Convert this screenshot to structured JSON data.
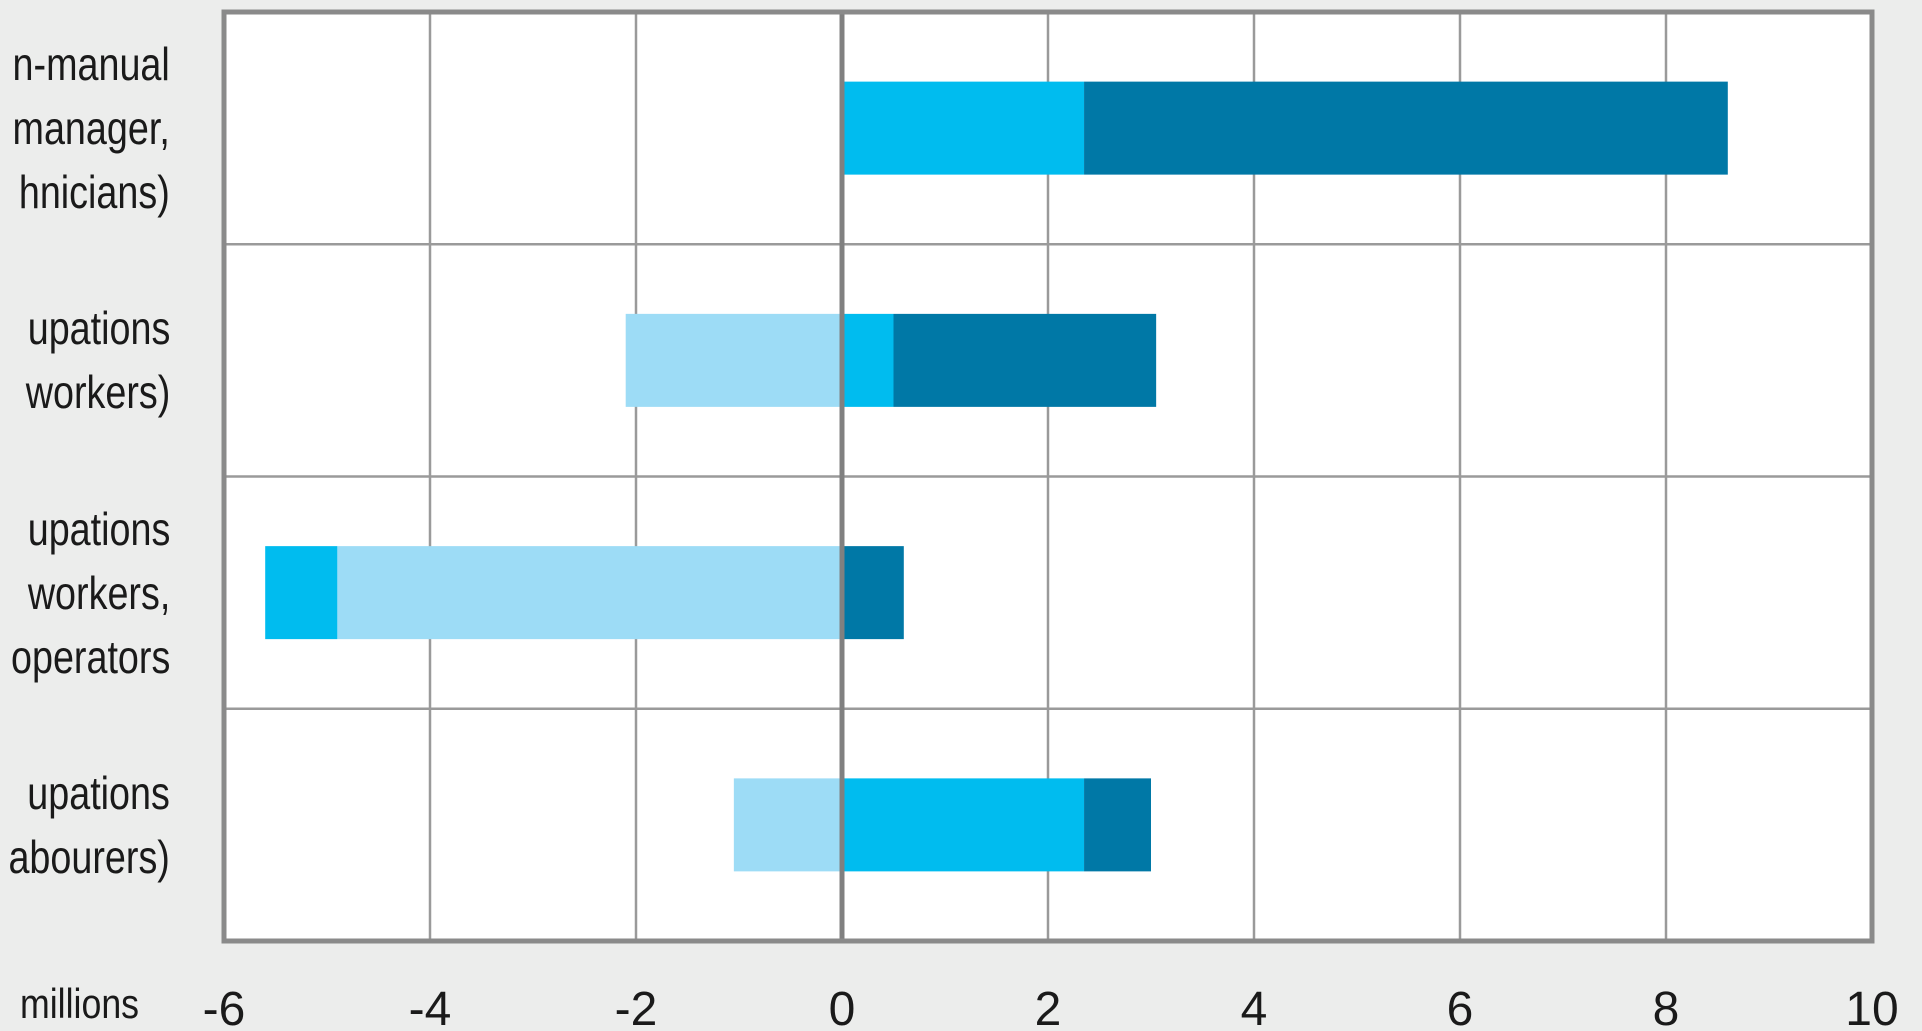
{
  "chart_data": {
    "type": "bar",
    "orientation": "horizontal",
    "stacked": true,
    "categories": [
      [
        "n-manual",
        "manager,",
        "hnicians)"
      ],
      [
        "upations",
        "workers)"
      ],
      [
        "upations",
        "workers,",
        "operators"
      ],
      [
        "upations",
        "abourers)"
      ]
    ],
    "series": [
      {
        "values": [
          0,
          -2.1,
          -4.9,
          -1.05
        ],
        "color": "#9ddcf6"
      },
      {
        "values": [
          2.35,
          0.5,
          -0.7,
          2.35
        ],
        "color": "#00bcef"
      },
      {
        "values": [
          6.25,
          2.55,
          0.6,
          0.65
        ],
        "color": "#0078a6"
      }
    ],
    "xlim": [
      -6,
      10
    ],
    "xticks": [
      "-6",
      "-4",
      "-2",
      "0",
      "2",
      "4",
      "6",
      "8",
      "10"
    ],
    "xlabel": "millions",
    "grid": true,
    "legend": "none"
  }
}
